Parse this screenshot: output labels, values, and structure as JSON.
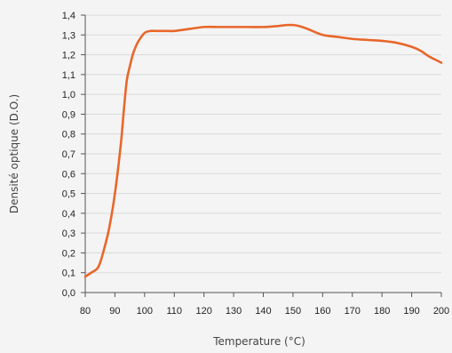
{
  "chart_data": {
    "type": "line",
    "title": "",
    "xlabel": "Temperature (°C)",
    "ylabel": "Densité optique (D.O.)",
    "xlim": [
      80,
      200
    ],
    "ylim": [
      0,
      1.4
    ],
    "x_ticks": [
      "80",
      "90",
      "100",
      "110",
      "120",
      "130",
      "140",
      "150",
      "160",
      "170",
      "180",
      "190",
      "200"
    ],
    "y_ticks": [
      "0,0",
      "0,1",
      "0,2",
      "0,3",
      "0,4",
      "0,5",
      "0,6",
      "0,7",
      "0,8",
      "0,9",
      "1,0",
      "1,1",
      "1,2",
      "1,3",
      "1,4"
    ],
    "grid": "horizontal",
    "legend": "none",
    "series": [
      {
        "color": "#e8672a",
        "x": [
          80,
          82,
          84,
          85,
          86,
          88,
          90,
          92,
          93,
          94,
          95,
          96,
          97,
          98,
          100,
          102,
          104,
          106,
          108,
          110,
          115,
          120,
          125,
          130,
          135,
          140,
          145,
          148,
          150,
          152,
          155,
          160,
          165,
          170,
          175,
          180,
          185,
          190,
          193,
          196,
          198,
          200
        ],
        "y": [
          0.08,
          0.1,
          0.12,
          0.15,
          0.2,
          0.32,
          0.5,
          0.75,
          0.92,
          1.07,
          1.14,
          1.2,
          1.24,
          1.27,
          1.31,
          1.32,
          1.32,
          1.32,
          1.32,
          1.32,
          1.33,
          1.34,
          1.34,
          1.34,
          1.34,
          1.34,
          1.345,
          1.35,
          1.35,
          1.345,
          1.33,
          1.3,
          1.29,
          1.28,
          1.275,
          1.27,
          1.26,
          1.24,
          1.22,
          1.19,
          1.175,
          1.16
        ]
      }
    ]
  }
}
